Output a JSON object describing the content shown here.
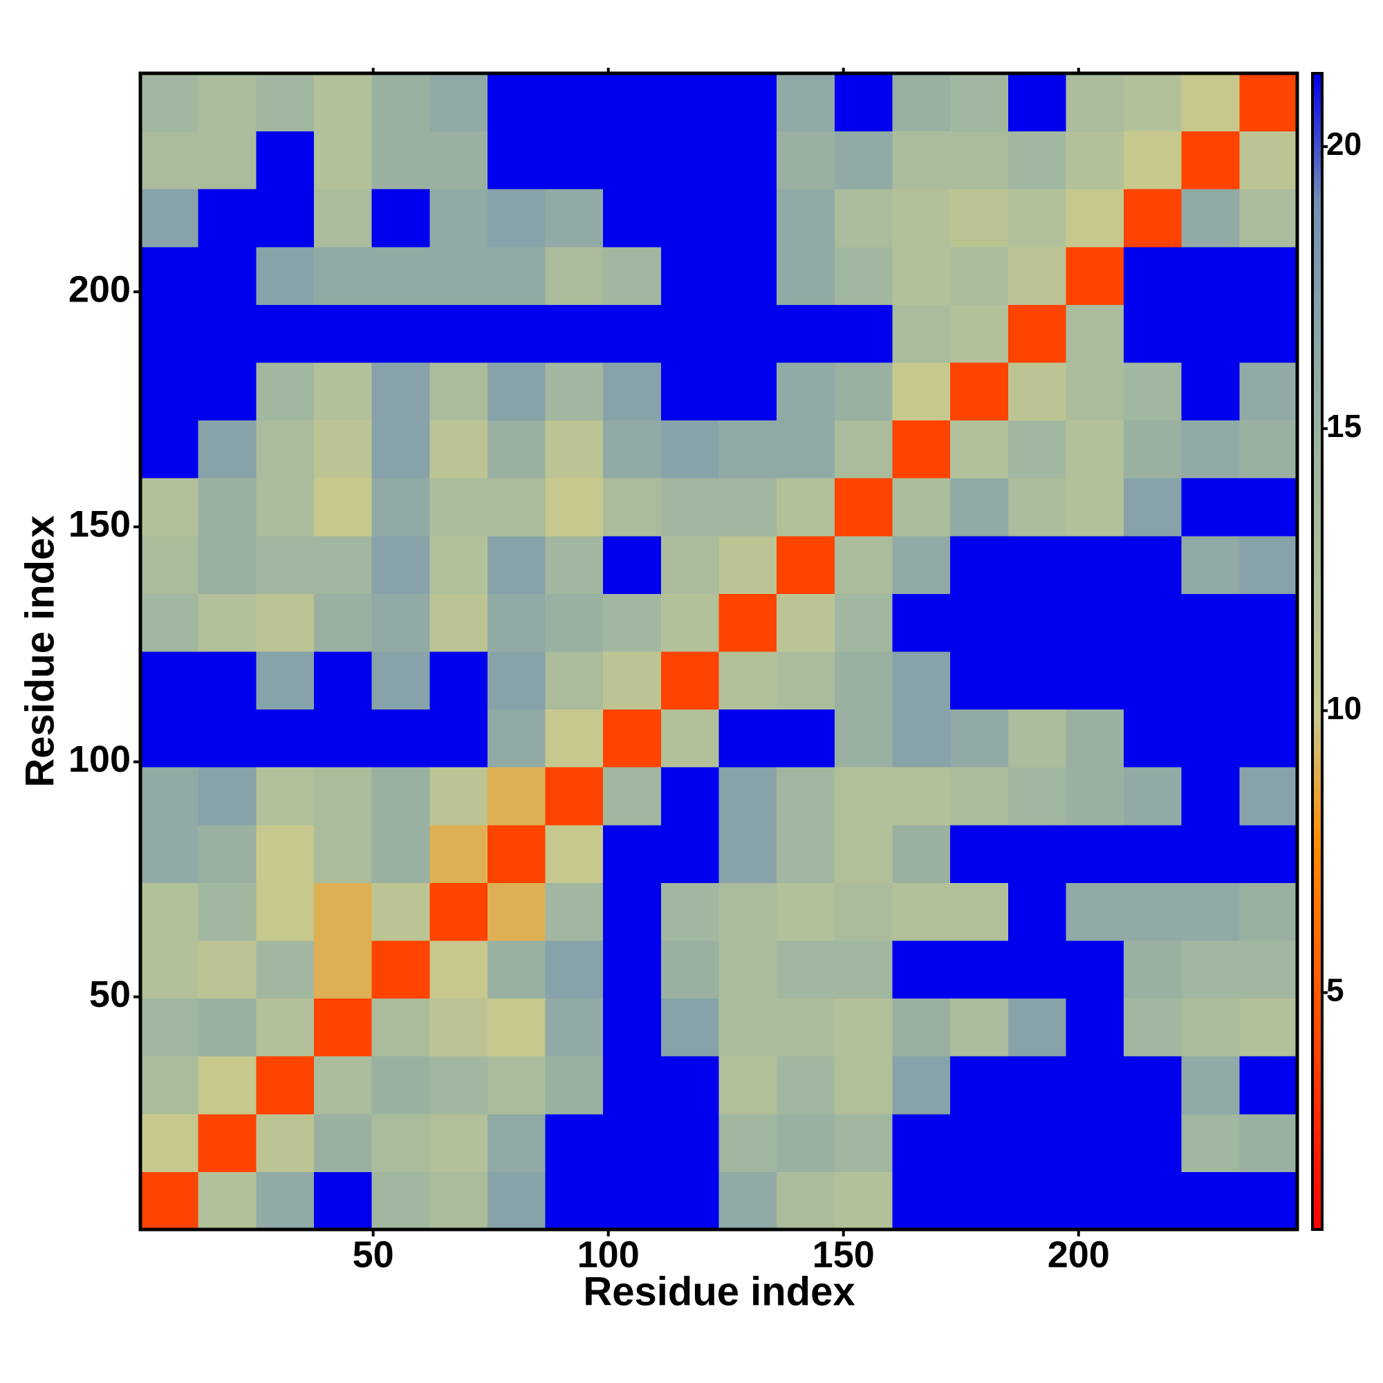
{
  "chart_data": {
    "type": "heatmap",
    "x_label": "Residue index",
    "y_label": "Residue index",
    "xlim": [
      0.5,
      246.5
    ],
    "ylim": [
      0.5,
      246.5
    ],
    "xticks": [
      50,
      100,
      150,
      200
    ],
    "yticks": [
      50,
      100,
      150,
      200
    ],
    "bins": [
      0.5,
      12.8,
      25.1,
      37.4,
      49.7,
      62,
      74.3,
      86.6,
      98.9,
      111.2,
      123.5,
      135.8,
      148.1,
      160.4,
      172.7,
      185,
      197.3,
      209.6,
      221.9,
      234.2,
      246.5
    ],
    "clim": [
      0.8,
      21.3
    ],
    "cticks": [
      5,
      10,
      15,
      20
    ],
    "colors": [
      "#ff0000",
      "#ff3000",
      "#ff6000",
      "#ff8c00",
      "#c8c88c",
      "#b0c09a",
      "#9fb5a0",
      "#8aa5a8",
      "#7090b5",
      "#0000ee"
    ],
    "z": [
      [
        4,
        12,
        16,
        21.3,
        14,
        13,
        17,
        21.3,
        21.3,
        21.3,
        16,
        13,
        12,
        21.3,
        21.3,
        21.3,
        21.3,
        21.3,
        21.3,
        21.3
      ],
      [
        10,
        4,
        11,
        15,
        13,
        12,
        16,
        21.3,
        21.3,
        21.3,
        14,
        15,
        14,
        21.3,
        21.3,
        21.3,
        21.3,
        21.3,
        14,
        15
      ],
      [
        13,
        10,
        4,
        13,
        15,
        14,
        13,
        15,
        21.3,
        21.3,
        12,
        14,
        12,
        17,
        21.3,
        21.3,
        21.3,
        21.3,
        16,
        21.3
      ],
      [
        14,
        15,
        12,
        4,
        13,
        11,
        10,
        16,
        21.3,
        17,
        13,
        13,
        12,
        15,
        13,
        17,
        21.3,
        14,
        13,
        12
      ],
      [
        12,
        11,
        14,
        9,
        4,
        10,
        15,
        17,
        21.3,
        15,
        13,
        14,
        14,
        21.3,
        21.3,
        21.3,
        21.3,
        15,
        14,
        14
      ],
      [
        12,
        14,
        10,
        9,
        11,
        4,
        9,
        14,
        21.3,
        14,
        13,
        12,
        13,
        12,
        12,
        21.3,
        16,
        16,
        16,
        15
      ],
      [
        16,
        15,
        10,
        13,
        15,
        9,
        4,
        10,
        21.3,
        21.3,
        17,
        14,
        12,
        15,
        21.3,
        21.3,
        21.3,
        21.3,
        21.3,
        21.3
      ],
      [
        16,
        17,
        12,
        13,
        15,
        11,
        9,
        4,
        14,
        21.3,
        17,
        14,
        12,
        12,
        13,
        14,
        15,
        16,
        21.3,
        17
      ],
      [
        21.3,
        21.3,
        21.3,
        21.3,
        21.3,
        21.3,
        16,
        10,
        4,
        12,
        21.3,
        21.3,
        15,
        17,
        16,
        13,
        15,
        21.3,
        21.3,
        21.3
      ],
      [
        21.3,
        21.3,
        17,
        21.3,
        17,
        21.3,
        17,
        13,
        11,
        4,
        12,
        13,
        15,
        17,
        21.3,
        21.3,
        21.3,
        21.3,
        21.3,
        21.3
      ],
      [
        14,
        12,
        11,
        15,
        16,
        11,
        16,
        15,
        14,
        12,
        4,
        11,
        14,
        21.3,
        21.3,
        21.3,
        21.3,
        21.3,
        21.3,
        21.3
      ],
      [
        13,
        15,
        14,
        14,
        17,
        12,
        17,
        14,
        21.3,
        13,
        11,
        4,
        13,
        16,
        21.3,
        21.3,
        21.3,
        21.3,
        16,
        17
      ],
      [
        12,
        15,
        13,
        10,
        16,
        13,
        13,
        10,
        13,
        14,
        14,
        12,
        4,
        13,
        16,
        13,
        12,
        17,
        21.3,
        21.3
      ],
      [
        21.3,
        17,
        13,
        11,
        17,
        11,
        15,
        11,
        16,
        17,
        16,
        16,
        13,
        4,
        12,
        14,
        12,
        15,
        16,
        15
      ],
      [
        21.3,
        21.3,
        14,
        12,
        17,
        13,
        17,
        14,
        17,
        21.3,
        21.3,
        16,
        15,
        10,
        4,
        11,
        13,
        14,
        21.3,
        16
      ],
      [
        21.3,
        21.3,
        21.3,
        21.3,
        21.3,
        21.3,
        21.3,
        21.3,
        21.3,
        21.3,
        21.3,
        21.3,
        21.3,
        13,
        12,
        4,
        13,
        21.3,
        21.3,
        21.3
      ],
      [
        21.3,
        21.3,
        17,
        16,
        16,
        16,
        16,
        13,
        14,
        21.3,
        21.3,
        16,
        14,
        12,
        13,
        11,
        4,
        21.3,
        21.3,
        21.3
      ],
      [
        17,
        21.3,
        21.3,
        13,
        21.3,
        16,
        17,
        16,
        21.3,
        21.3,
        21.3,
        16,
        13,
        12,
        11,
        12,
        10,
        4,
        16,
        13
      ],
      [
        13,
        13,
        21.3,
        12,
        15,
        15,
        21.3,
        21.3,
        21.3,
        21.3,
        21.3,
        15,
        16,
        13,
        13,
        14,
        12,
        10,
        4,
        11
      ],
      [
        14,
        13,
        14,
        12,
        15,
        16,
        21.3,
        21.3,
        21.3,
        21.3,
        21.3,
        16,
        21.3,
        15,
        14,
        21.3,
        13,
        12,
        10,
        4
      ]
    ]
  }
}
